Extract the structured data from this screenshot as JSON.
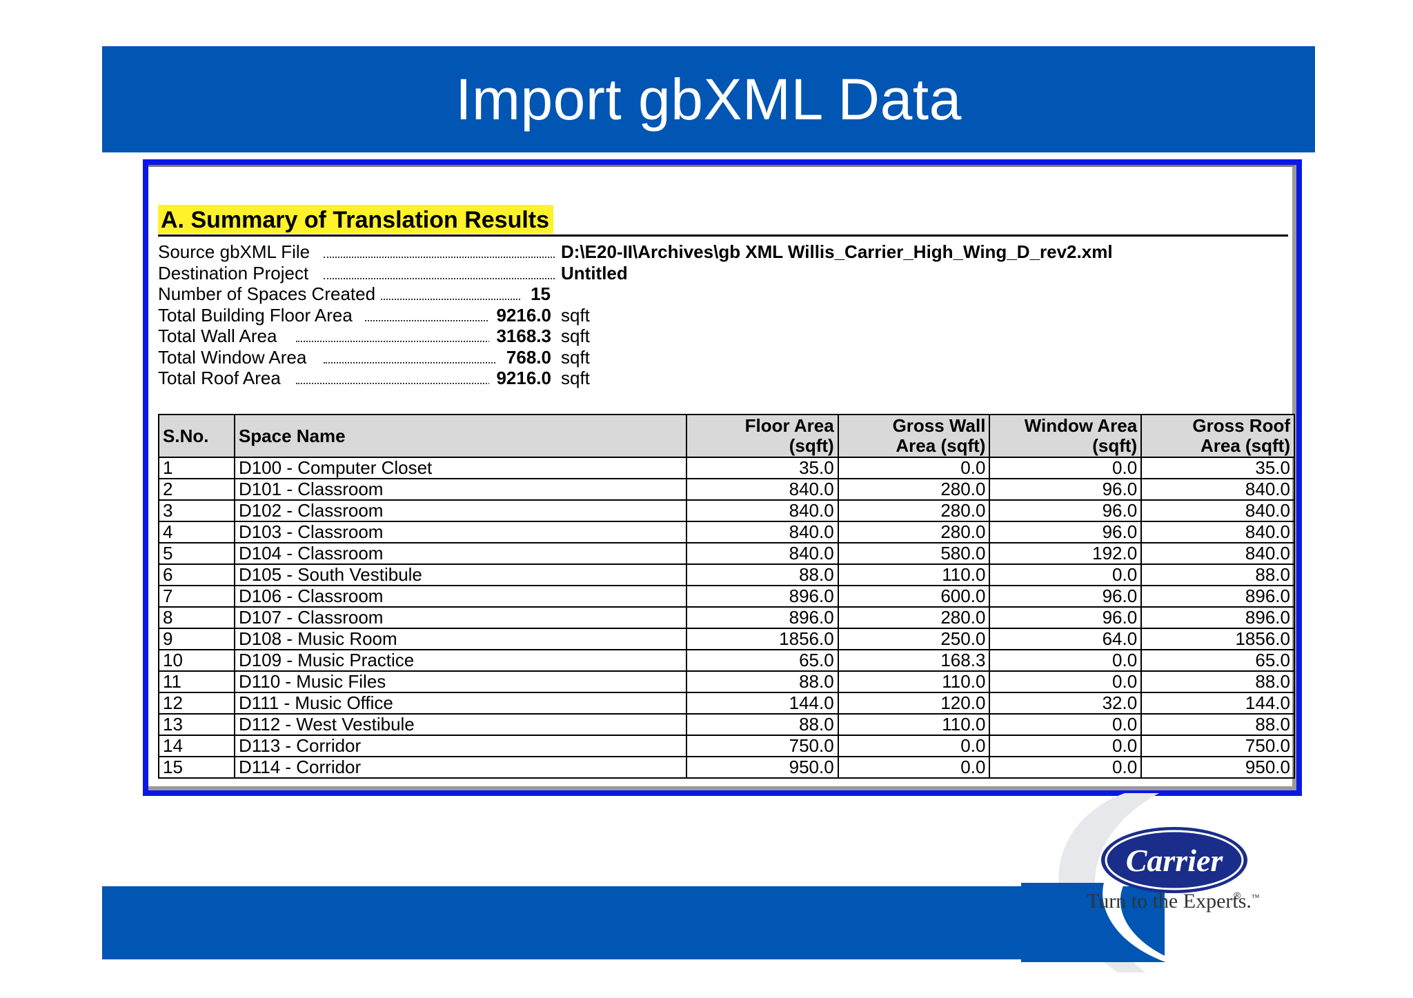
{
  "slide": {
    "title": "Import gbXML Data"
  },
  "report": {
    "section_title": "A. Summary of Translation Results",
    "summary": [
      {
        "label": "Source gbXML File",
        "value": "D:\\E20-II\\Archives\\gb XML Willis_Carrier_High_Wing_D_rev2.xml"
      },
      {
        "label": "Destination Project",
        "value": "Untitled"
      },
      {
        "label": "Number of Spaces Created",
        "value": "15"
      },
      {
        "label": "Total Building Floor Area",
        "value": "9216.0",
        "unit": "sqft"
      },
      {
        "label": "Total Wall Area",
        "value": "3168.3",
        "unit": "sqft"
      },
      {
        "label": "Total Window Area",
        "value": "768.0",
        "unit": "sqft"
      },
      {
        "label": "Total Roof Area",
        "value": "9216.0",
        "unit": "sqft"
      }
    ],
    "table": {
      "headers": {
        "sno": "S.No.",
        "space_name": "Space Name",
        "floor_area_1": "Floor Area",
        "floor_area_2": "(sqft)",
        "gross_wall_1": "Gross Wall",
        "gross_wall_2": "Area (sqft)",
        "window_area_1": "Window Area",
        "window_area_2": "(sqft)",
        "gross_roof_1": "Gross Roof",
        "gross_roof_2": "Area (sqft)"
      },
      "rows": [
        [
          "1",
          "D100 - Computer Closet",
          "35.0",
          "0.0",
          "0.0",
          "35.0"
        ],
        [
          "2",
          "D101 - Classroom",
          "840.0",
          "280.0",
          "96.0",
          "840.0"
        ],
        [
          "3",
          "D102 - Classroom",
          "840.0",
          "280.0",
          "96.0",
          "840.0"
        ],
        [
          "4",
          "D103 - Classroom",
          "840.0",
          "280.0",
          "96.0",
          "840.0"
        ],
        [
          "5",
          "D104 - Classroom",
          "840.0",
          "580.0",
          "192.0",
          "840.0"
        ],
        [
          "6",
          "D105 - South Vestibule",
          "88.0",
          "110.0",
          "0.0",
          "88.0"
        ],
        [
          "7",
          "D106 - Classroom",
          "896.0",
          "600.0",
          "96.0",
          "896.0"
        ],
        [
          "8",
          "D107 - Classroom",
          "896.0",
          "280.0",
          "96.0",
          "896.0"
        ],
        [
          "9",
          "D108 - Music Room",
          "1856.0",
          "250.0",
          "64.0",
          "1856.0"
        ],
        [
          "10",
          "D109 - Music Practice",
          "65.0",
          "168.3",
          "0.0",
          "65.0"
        ],
        [
          "11",
          "D110 - Music Files",
          "88.0",
          "110.0",
          "0.0",
          "88.0"
        ],
        [
          "12",
          "D111 - Music Office",
          "144.0",
          "120.0",
          "32.0",
          "144.0"
        ],
        [
          "13",
          "D112 - West Vestibule",
          "88.0",
          "110.0",
          "0.0",
          "88.0"
        ],
        [
          "14",
          "D113 - Corridor",
          "750.0",
          "0.0",
          "0.0",
          "750.0"
        ],
        [
          "15",
          "D114 - Corridor",
          "950.0",
          "0.0",
          "0.0",
          "950.0"
        ]
      ]
    }
  },
  "branding": {
    "logo_text": "Carrier",
    "registered_mark": "®",
    "tagline": "Turn to the Experts.",
    "tm_mark": "™",
    "brand_color": "#0155b3",
    "frame_color": "#0a18e6",
    "highlight_color": "#fff22a"
  }
}
